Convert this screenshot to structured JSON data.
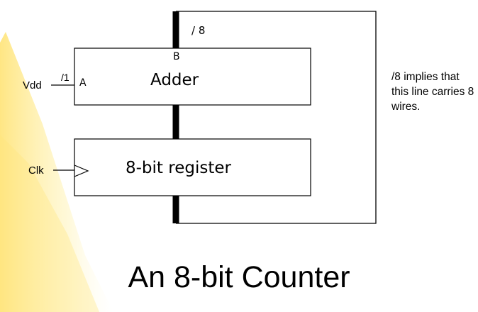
{
  "diagram": {
    "bus_width_label": "/ 8",
    "adder": {
      "label": "Adder",
      "port_a": "A",
      "port_b": "B"
    },
    "register": {
      "label": "8-bit register"
    },
    "vdd": {
      "label": "Vdd",
      "width_label": "/1"
    },
    "clk": {
      "label": "Clk"
    },
    "note": "/8 implies that this line carries 8 wires."
  },
  "title": "An 8-bit Counter",
  "colors": {
    "background_accent": "#ffe04a",
    "lines": "#000000",
    "background": "#ffffff"
  }
}
